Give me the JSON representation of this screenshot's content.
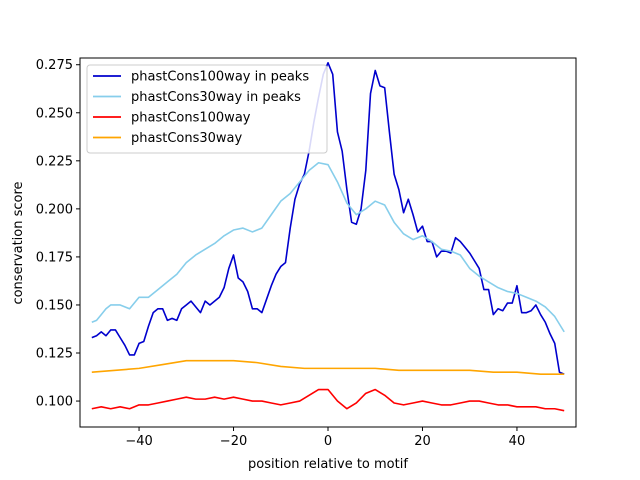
{
  "chart_data": {
    "type": "line",
    "title": "",
    "xlabel": "position relative to motif",
    "ylabel": "conservation score",
    "xlim": [
      -52.5,
      52.5
    ],
    "ylim": [
      0.0865,
      0.2785
    ],
    "xticks": [
      -40,
      -20,
      0,
      20,
      40
    ],
    "xtick_labels": [
      "−40",
      "−20",
      "0",
      "20",
      "40"
    ],
    "yticks": [
      0.1,
      0.125,
      0.15,
      0.175,
      0.2,
      0.225,
      0.25,
      0.275
    ],
    "ytick_labels": [
      "0.100",
      "0.125",
      "0.150",
      "0.175",
      "0.200",
      "0.225",
      "0.250",
      "0.275"
    ],
    "grid": false,
    "legend_position": "top-left",
    "series": [
      {
        "name": "phastCons100way in peaks",
        "color": "#0000cd",
        "points": [
          [
            -50,
            0.133
          ],
          [
            -49,
            0.134
          ],
          [
            -48,
            0.136
          ],
          [
            -47,
            0.134
          ],
          [
            -46,
            0.137
          ],
          [
            -45,
            0.137
          ],
          [
            -44,
            0.133
          ],
          [
            -43,
            0.129
          ],
          [
            -42,
            0.124
          ],
          [
            -41,
            0.124
          ],
          [
            -40,
            0.13
          ],
          [
            -39,
            0.131
          ],
          [
            -38,
            0.139
          ],
          [
            -37,
            0.146
          ],
          [
            -36,
            0.148
          ],
          [
            -35,
            0.148
          ],
          [
            -34,
            0.142
          ],
          [
            -33,
            0.143
          ],
          [
            -32,
            0.142
          ],
          [
            -31,
            0.148
          ],
          [
            -30,
            0.15
          ],
          [
            -29,
            0.152
          ],
          [
            -28,
            0.149
          ],
          [
            -27,
            0.146
          ],
          [
            -26,
            0.152
          ],
          [
            -25,
            0.15
          ],
          [
            -24,
            0.152
          ],
          [
            -23,
            0.154
          ],
          [
            -22,
            0.159
          ],
          [
            -21,
            0.169
          ],
          [
            -20,
            0.176
          ],
          [
            -19,
            0.164
          ],
          [
            -18,
            0.162
          ],
          [
            -17,
            0.157
          ],
          [
            -16,
            0.148
          ],
          [
            -15,
            0.148
          ],
          [
            -14,
            0.146
          ],
          [
            -13,
            0.153
          ],
          [
            -12,
            0.16
          ],
          [
            -11,
            0.166
          ],
          [
            -10,
            0.17
          ],
          [
            -9,
            0.172
          ],
          [
            -8,
            0.19
          ],
          [
            -7,
            0.205
          ],
          [
            -6,
            0.213
          ],
          [
            -5,
            0.218
          ],
          [
            -4,
            0.23
          ],
          [
            -3,
            0.245
          ],
          [
            -2,
            0.258
          ],
          [
            -1,
            0.27
          ],
          [
            0,
            0.276
          ],
          [
            1,
            0.27
          ],
          [
            2,
            0.24
          ],
          [
            3,
            0.23
          ],
          [
            4,
            0.21
          ],
          [
            5,
            0.193
          ],
          [
            6,
            0.192
          ],
          [
            7,
            0.2
          ],
          [
            8,
            0.22
          ],
          [
            9,
            0.26
          ],
          [
            10,
            0.272
          ],
          [
            11,
            0.264
          ],
          [
            12,
            0.263
          ],
          [
            13,
            0.24
          ],
          [
            14,
            0.218
          ],
          [
            15,
            0.21
          ],
          [
            16,
            0.198
          ],
          [
            17,
            0.205
          ],
          [
            18,
            0.197
          ],
          [
            19,
            0.188
          ],
          [
            20,
            0.191
          ],
          [
            21,
            0.183
          ],
          [
            22,
            0.183
          ],
          [
            23,
            0.175
          ],
          [
            24,
            0.178
          ],
          [
            25,
            0.178
          ],
          [
            26,
            0.177
          ],
          [
            27,
            0.185
          ],
          [
            28,
            0.183
          ],
          [
            29,
            0.18
          ],
          [
            30,
            0.177
          ],
          [
            31,
            0.173
          ],
          [
            32,
            0.169
          ],
          [
            33,
            0.158
          ],
          [
            34,
            0.158
          ],
          [
            35,
            0.145
          ],
          [
            36,
            0.148
          ],
          [
            37,
            0.147
          ],
          [
            38,
            0.151
          ],
          [
            39,
            0.151
          ],
          [
            40,
            0.16
          ],
          [
            41,
            0.146
          ],
          [
            42,
            0.146
          ],
          [
            43,
            0.147
          ],
          [
            44,
            0.15
          ],
          [
            45,
            0.145
          ],
          [
            46,
            0.141
          ],
          [
            47,
            0.135
          ],
          [
            48,
            0.13
          ],
          [
            49,
            0.115
          ],
          [
            50,
            0.114
          ]
        ]
      },
      {
        "name": "phastCons30way in peaks",
        "color": "#87ceeb",
        "points": [
          [
            -50,
            0.141
          ],
          [
            -49,
            0.142
          ],
          [
            -48,
            0.145
          ],
          [
            -47,
            0.148
          ],
          [
            -46,
            0.15
          ],
          [
            -44,
            0.15
          ],
          [
            -42,
            0.148
          ],
          [
            -40,
            0.154
          ],
          [
            -38,
            0.154
          ],
          [
            -36,
            0.158
          ],
          [
            -34,
            0.162
          ],
          [
            -32,
            0.166
          ],
          [
            -30,
            0.172
          ],
          [
            -28,
            0.176
          ],
          [
            -26,
            0.179
          ],
          [
            -24,
            0.182
          ],
          [
            -22,
            0.186
          ],
          [
            -20,
            0.189
          ],
          [
            -18,
            0.19
          ],
          [
            -16,
            0.188
          ],
          [
            -14,
            0.19
          ],
          [
            -12,
            0.197
          ],
          [
            -10,
            0.204
          ],
          [
            -8,
            0.208
          ],
          [
            -6,
            0.214
          ],
          [
            -4,
            0.22
          ],
          [
            -2,
            0.224
          ],
          [
            0,
            0.223
          ],
          [
            2,
            0.214
          ],
          [
            4,
            0.203
          ],
          [
            6,
            0.197
          ],
          [
            8,
            0.2
          ],
          [
            10,
            0.204
          ],
          [
            12,
            0.202
          ],
          [
            14,
            0.193
          ],
          [
            16,
            0.187
          ],
          [
            18,
            0.184
          ],
          [
            20,
            0.186
          ],
          [
            22,
            0.183
          ],
          [
            24,
            0.179
          ],
          [
            26,
            0.178
          ],
          [
            28,
            0.176
          ],
          [
            30,
            0.169
          ],
          [
            32,
            0.165
          ],
          [
            34,
            0.162
          ],
          [
            36,
            0.159
          ],
          [
            38,
            0.157
          ],
          [
            40,
            0.156
          ],
          [
            42,
            0.154
          ],
          [
            44,
            0.152
          ],
          [
            46,
            0.149
          ],
          [
            48,
            0.144
          ],
          [
            50,
            0.136
          ]
        ]
      },
      {
        "name": "phastCons100way",
        "color": "#ff0000",
        "points": [
          [
            -50,
            0.096
          ],
          [
            -48,
            0.097
          ],
          [
            -46,
            0.096
          ],
          [
            -44,
            0.097
          ],
          [
            -42,
            0.096
          ],
          [
            -40,
            0.098
          ],
          [
            -38,
            0.098
          ],
          [
            -36,
            0.099
          ],
          [
            -34,
            0.1
          ],
          [
            -32,
            0.101
          ],
          [
            -30,
            0.102
          ],
          [
            -28,
            0.101
          ],
          [
            -26,
            0.101
          ],
          [
            -24,
            0.102
          ],
          [
            -22,
            0.101
          ],
          [
            -20,
            0.102
          ],
          [
            -18,
            0.101
          ],
          [
            -16,
            0.1
          ],
          [
            -14,
            0.1
          ],
          [
            -12,
            0.099
          ],
          [
            -10,
            0.098
          ],
          [
            -8,
            0.099
          ],
          [
            -6,
            0.1
          ],
          [
            -4,
            0.103
          ],
          [
            -2,
            0.106
          ],
          [
            0,
            0.106
          ],
          [
            2,
            0.1
          ],
          [
            4,
            0.096
          ],
          [
            6,
            0.099
          ],
          [
            8,
            0.104
          ],
          [
            10,
            0.106
          ],
          [
            12,
            0.103
          ],
          [
            14,
            0.099
          ],
          [
            16,
            0.098
          ],
          [
            18,
            0.099
          ],
          [
            20,
            0.1
          ],
          [
            22,
            0.099
          ],
          [
            24,
            0.098
          ],
          [
            26,
            0.098
          ],
          [
            28,
            0.099
          ],
          [
            30,
            0.1
          ],
          [
            32,
            0.1
          ],
          [
            34,
            0.099
          ],
          [
            36,
            0.098
          ],
          [
            38,
            0.098
          ],
          [
            40,
            0.097
          ],
          [
            42,
            0.097
          ],
          [
            44,
            0.097
          ],
          [
            46,
            0.096
          ],
          [
            48,
            0.096
          ],
          [
            50,
            0.095
          ]
        ]
      },
      {
        "name": "phastCons30way",
        "color": "#ffa500",
        "points": [
          [
            -50,
            0.115
          ],
          [
            -45,
            0.116
          ],
          [
            -40,
            0.117
          ],
          [
            -35,
            0.119
          ],
          [
            -30,
            0.121
          ],
          [
            -25,
            0.121
          ],
          [
            -20,
            0.121
          ],
          [
            -15,
            0.12
          ],
          [
            -10,
            0.118
          ],
          [
            -5,
            0.117
          ],
          [
            0,
            0.117
          ],
          [
            5,
            0.117
          ],
          [
            10,
            0.117
          ],
          [
            15,
            0.116
          ],
          [
            20,
            0.116
          ],
          [
            25,
            0.116
          ],
          [
            30,
            0.116
          ],
          [
            35,
            0.115
          ],
          [
            40,
            0.115
          ],
          [
            45,
            0.114
          ],
          [
            50,
            0.114
          ]
        ]
      }
    ]
  }
}
